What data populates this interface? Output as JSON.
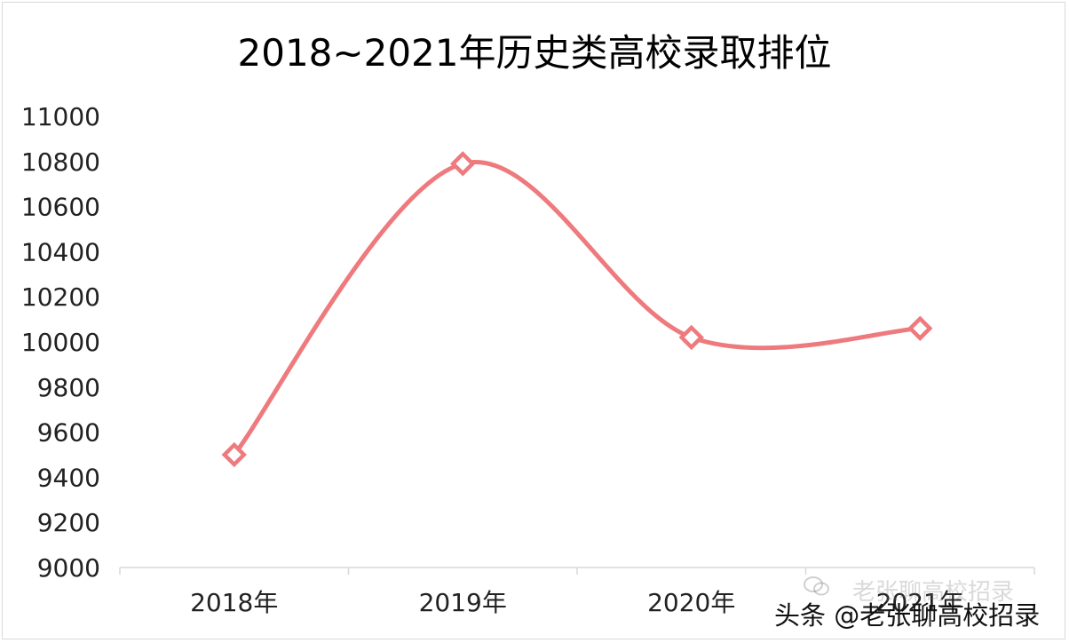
{
  "chart_data": {
    "type": "line",
    "title": "2018~2021年历史类高校录取排位",
    "categories": [
      "2018年",
      "2019年",
      "2020年",
      "2021年"
    ],
    "series": [
      {
        "values": [
          9500,
          10790,
          10020,
          10060
        ],
        "color": "#ee7a7e",
        "marker": "diamond-open",
        "smooth": true
      }
    ],
    "xlabel": "",
    "ylabel": "",
    "ylim": [
      9000,
      11000
    ],
    "yticks": [
      9000,
      9200,
      9400,
      9600,
      9800,
      10000,
      10200,
      10400,
      10600,
      10800,
      11000
    ],
    "grid": false,
    "legend": "none"
  },
  "watermark": {
    "ghost_text": "老张聊高校招录",
    "ghost_icon": "wechat-icon",
    "main_text": "头条 @老张聊高校招录"
  },
  "colors": {
    "line": "#ee7a7e",
    "marker_fill": "#ffffff",
    "axis": "#d9d9d9",
    "text": "#000000",
    "tick_text": "#222222"
  }
}
